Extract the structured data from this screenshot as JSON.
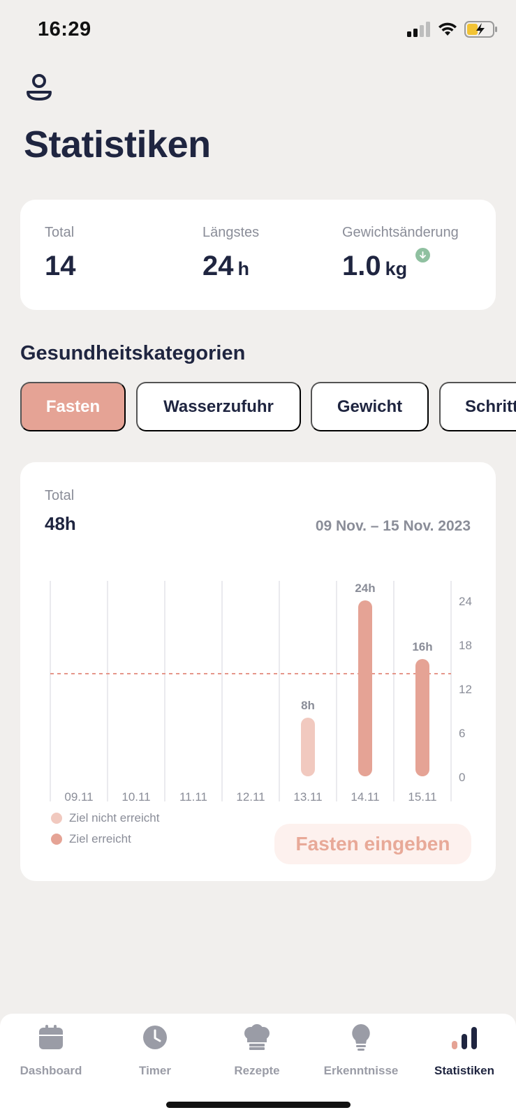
{
  "status_bar": {
    "time": "16:29"
  },
  "page": {
    "title": "Statistiken"
  },
  "summary": {
    "total_label": "Total",
    "total_value": "14",
    "longest_label": "Längstes",
    "longest_value": "24",
    "longest_unit": "h",
    "weight_label": "Gewichtsänderung",
    "weight_value": "1.0",
    "weight_unit": "kg"
  },
  "categories": {
    "title": "Gesundheitskategorien",
    "chips": [
      "Fasten",
      "Wasserzufuhr",
      "Gewicht",
      "Schritte"
    ],
    "active": "Fasten"
  },
  "chart_card": {
    "total_label": "Total",
    "total_value": "48h",
    "date_range": "09 Nov. – 15 Nov. 2023",
    "legend_not_reached": "Ziel nicht erreicht",
    "legend_reached": "Ziel erreicht",
    "enter_button": "Fasten eingeben"
  },
  "chart_data": {
    "type": "bar",
    "categories": [
      "09.11",
      "10.11",
      "11.11",
      "12.11",
      "13.11",
      "14.11",
      "15.11"
    ],
    "values": [
      0,
      0,
      0,
      0,
      8,
      24,
      16
    ],
    "data_labels": [
      "",
      "",
      "",
      "",
      "8h",
      "24h",
      "16h"
    ],
    "goal_reached": [
      false,
      false,
      false,
      false,
      false,
      true,
      true
    ],
    "goal_line": 14,
    "yticks": [
      0,
      6,
      12,
      18,
      24
    ],
    "ylim": [
      0,
      24
    ],
    "colors": {
      "reached": "#e5a395",
      "not_reached": "#f1c9bf",
      "goal_line": "#e5968a"
    }
  },
  "tabbar": {
    "items": [
      {
        "label": "Dashboard",
        "icon": "calendar-icon"
      },
      {
        "label": "Timer",
        "icon": "clock-icon"
      },
      {
        "label": "Rezepte",
        "icon": "chef-hat-icon"
      },
      {
        "label": "Erkenntnisse",
        "icon": "lightbulb-icon"
      },
      {
        "label": "Statistiken",
        "icon": "bar-chart-icon"
      }
    ],
    "active": "Statistiken"
  }
}
